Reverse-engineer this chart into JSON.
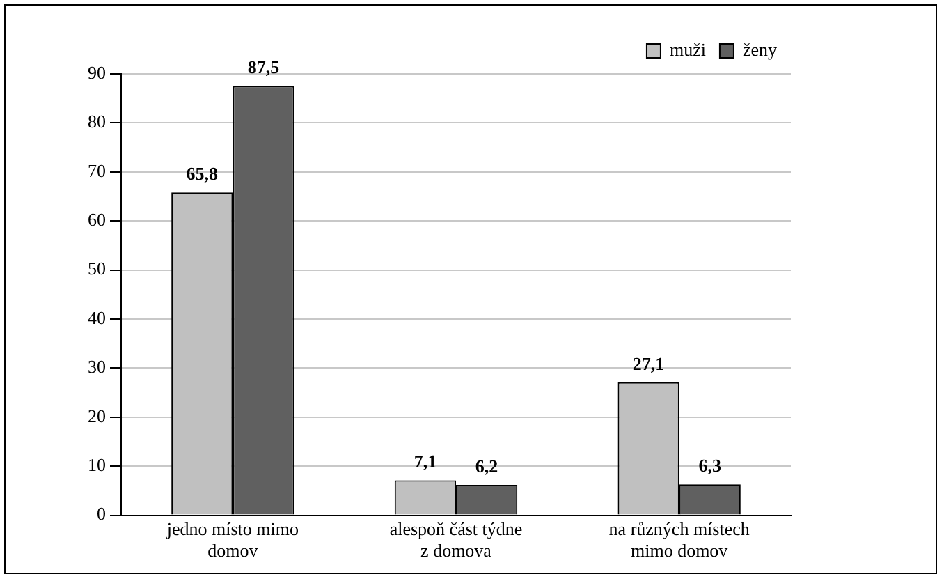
{
  "chart_data": {
    "type": "bar",
    "categories": [
      "jedno místo mimo domov",
      "alespoň část týdne z domova",
      "na různých místech mimo domov"
    ],
    "series": [
      {
        "name": "muži",
        "color": "#c0c0c0",
        "values": [
          65.8,
          7.1,
          27.1
        ],
        "value_labels": [
          "65,8",
          "7,1",
          "27,1"
        ]
      },
      {
        "name": "ženy",
        "color": "#606060",
        "values": [
          87.5,
          6.2,
          6.3
        ],
        "value_labels": [
          "87,5",
          "6,2",
          "6,3"
        ]
      }
    ],
    "ylim": [
      0,
      90
    ],
    "yticks": [
      0,
      10,
      20,
      30,
      40,
      50,
      60,
      70,
      80,
      90
    ],
    "grid": "y",
    "legend": "top right"
  }
}
